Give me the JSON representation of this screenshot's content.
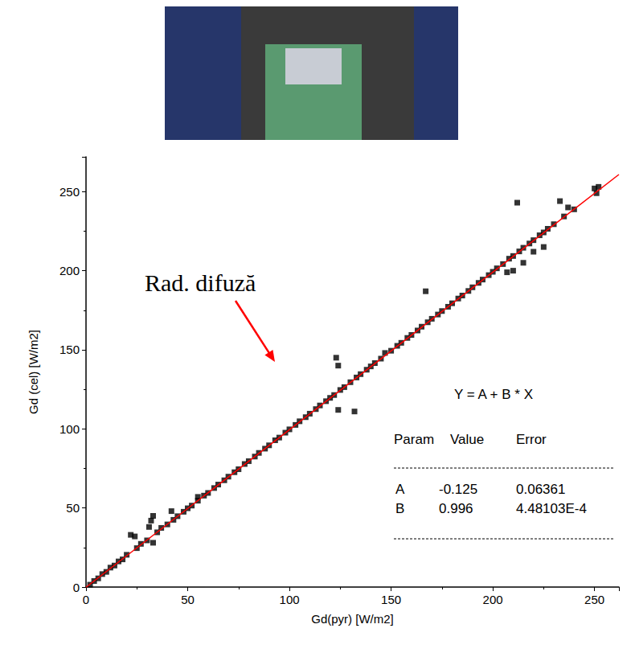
{
  "chart_data": {
    "type": "scatter",
    "x_label": "Gd(pyr) [W/m2]",
    "y_label": "Gd (cel) [W/m2]",
    "xlim": [
      0,
      262
    ],
    "ylim": [
      0,
      272
    ],
    "xticks": [
      0,
      50,
      100,
      150,
      200,
      250
    ],
    "yticks": [
      0,
      50,
      100,
      150,
      200,
      250
    ],
    "grid": false,
    "annotation": "Rad. difuză",
    "series": [
      {
        "type": "scatter",
        "color": "#000000",
        "marker": "square",
        "values": [
          [
            2,
            1.5
          ],
          [
            4,
            3.8
          ],
          [
            6,
            5.5
          ],
          [
            8,
            8.2
          ],
          [
            10,
            9.6
          ],
          [
            12,
            12.3
          ],
          [
            14,
            13.6
          ],
          [
            16,
            16.2
          ],
          [
            18,
            17.5
          ],
          [
            20,
            20.4
          ],
          [
            22,
            33
          ],
          [
            24,
            32
          ],
          [
            25,
            24.6
          ],
          [
            27,
            27.3
          ],
          [
            30,
            29.5
          ],
          [
            31,
            38
          ],
          [
            32,
            42
          ],
          [
            33,
            45
          ],
          [
            33,
            28
          ],
          [
            35,
            34.6
          ],
          [
            37,
            37.4
          ],
          [
            40,
            39.6
          ],
          [
            42,
            48
          ],
          [
            43,
            42.5
          ],
          [
            45,
            44.8
          ],
          [
            48,
            47.6
          ],
          [
            50,
            49.8
          ],
          [
            52,
            51.5
          ],
          [
            55,
            57
          ],
          [
            55,
            54.6
          ],
          [
            58,
            57.8
          ],
          [
            60,
            59.5
          ],
          [
            63,
            62.6
          ],
          [
            65,
            64.8
          ],
          [
            68,
            67.5
          ],
          [
            70,
            69.8
          ],
          [
            73,
            72.6
          ],
          [
            75,
            74.5
          ],
          [
            78,
            77.8
          ],
          [
            80,
            79.6
          ],
          [
            83,
            82.5
          ],
          [
            85,
            84.8
          ],
          [
            88,
            87.5
          ],
          [
            90,
            89.6
          ],
          [
            93,
            92.8
          ],
          [
            95,
            94.5
          ],
          [
            98,
            97.6
          ],
          [
            100,
            99.7
          ],
          [
            103,
            102.5
          ],
          [
            105,
            104.8
          ],
          [
            108,
            107.4
          ],
          [
            110,
            109.6
          ],
          [
            113,
            112.5
          ],
          [
            115,
            114.8
          ],
          [
            118,
            117.5
          ],
          [
            120,
            119.6
          ],
          [
            122,
            121.4
          ],
          [
            123,
            145
          ],
          [
            124,
            140
          ],
          [
            124,
            112
          ],
          [
            125,
            124.6
          ],
          [
            127,
            126.4
          ],
          [
            130,
            129.5
          ],
          [
            132,
            111
          ],
          [
            133,
            132.5
          ],
          [
            135,
            134.6
          ],
          [
            138,
            137.4
          ],
          [
            140,
            139.5
          ],
          [
            142,
            141.6
          ],
          [
            145,
            144.4
          ],
          [
            147,
            148
          ],
          [
            150,
            149.4
          ],
          [
            153,
            152.5
          ],
          [
            155,
            154.4
          ],
          [
            158,
            157.5
          ],
          [
            160,
            159.4
          ],
          [
            163,
            162.2
          ],
          [
            165,
            164.6
          ],
          [
            167,
            187
          ],
          [
            168,
            167.4
          ],
          [
            170,
            169.6
          ],
          [
            173,
            172.3
          ],
          [
            175,
            174.5
          ],
          [
            178,
            177.2
          ],
          [
            180,
            179.4
          ],
          [
            183,
            182.4
          ],
          [
            185,
            184.3
          ],
          [
            188,
            187.2
          ],
          [
            190,
            189.5
          ],
          [
            193,
            192.3
          ],
          [
            195,
            194.4
          ],
          [
            198,
            197.2
          ],
          [
            200,
            199.3
          ],
          [
            202,
            201.5
          ],
          [
            205,
            204.2
          ],
          [
            207,
            199
          ],
          [
            208,
            207.6
          ],
          [
            210,
            209.3
          ],
          [
            210,
            200
          ],
          [
            212,
            243
          ],
          [
            213,
            212.2
          ],
          [
            215,
            214.5
          ],
          [
            215,
            205
          ],
          [
            218,
            217.2
          ],
          [
            220,
            219.3
          ],
          [
            220,
            212
          ],
          [
            223,
            222.4
          ],
          [
            225,
            224.2
          ],
          [
            225,
            215
          ],
          [
            227,
            226.5
          ],
          [
            230,
            229.4
          ],
          [
            233,
            244
          ],
          [
            235,
            234.3
          ],
          [
            237,
            240
          ],
          [
            240,
            238.8
          ],
          [
            250,
            252
          ],
          [
            251,
            249
          ],
          [
            252,
            253
          ]
        ]
      }
    ],
    "fit": {
      "type": "line",
      "color": "#ff0000",
      "equation": "Y = A + B * X",
      "columns": [
        "Param",
        "Value",
        "Error"
      ],
      "params": [
        {
          "name": "A",
          "value": -0.125,
          "error": 0.06361
        },
        {
          "name": "B",
          "value": 0.996,
          "error": {
            "value": 0.000448103,
            "label": "4.48103E-4"
          }
        }
      ]
    }
  }
}
